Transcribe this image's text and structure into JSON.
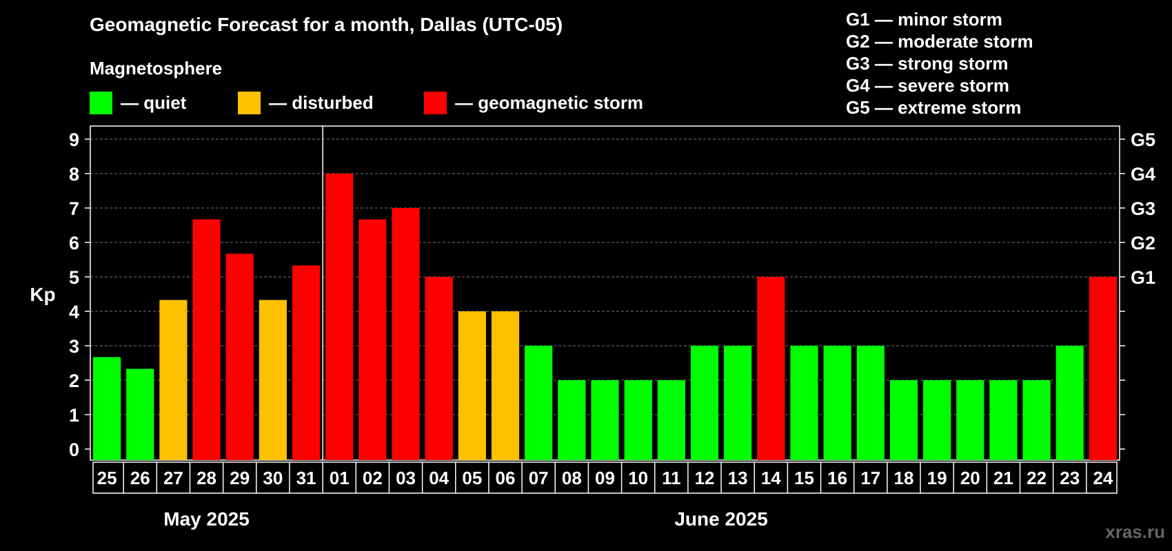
{
  "title": "Geomagnetic Forecast for a month, Dallas (UTC-05)",
  "legend": {
    "heading": "Magnetosphere",
    "items": [
      {
        "label": "— quiet",
        "color": "#00ff00"
      },
      {
        "label": "— disturbed",
        "color": "#ffc000"
      },
      {
        "label": "— geomagnetic storm",
        "color": "#ff0000"
      }
    ]
  },
  "g_scale": [
    "G1 — minor storm",
    "G2 — moderate storm",
    "G3 — strong storm",
    "G4 — severe storm",
    "G5 — extreme storm"
  ],
  "watermark": "xras.ru",
  "chart_data": {
    "type": "bar",
    "title": "Geomagnetic Forecast for a month, Dallas (UTC-05)",
    "ylabel": "Kp",
    "ylim": [
      0,
      9
    ],
    "yticks": [
      "0",
      "1",
      "2",
      "3",
      "4",
      "5",
      "6",
      "7",
      "8",
      "9"
    ],
    "right_ticks": [
      {
        "value": 5,
        "label": "G1"
      },
      {
        "value": 6,
        "label": "G2"
      },
      {
        "value": 7,
        "label": "G3"
      },
      {
        "value": 8,
        "label": "G4"
      },
      {
        "value": 9,
        "label": "G5"
      }
    ],
    "categories": [
      "25",
      "26",
      "27",
      "28",
      "29",
      "30",
      "31",
      "01",
      "02",
      "03",
      "04",
      "05",
      "06",
      "07",
      "08",
      "09",
      "10",
      "11",
      "12",
      "13",
      "14",
      "15",
      "16",
      "17",
      "18",
      "19",
      "20",
      "21",
      "22",
      "23",
      "24"
    ],
    "values": [
      2.67,
      2.33,
      4.33,
      6.67,
      5.67,
      4.33,
      5.33,
      8,
      6.67,
      7,
      5,
      4,
      4,
      3,
      2,
      2,
      2,
      2,
      3,
      3,
      5,
      3,
      3,
      3,
      2,
      2,
      2,
      2,
      2,
      3,
      5
    ],
    "levels": [
      "quiet",
      "quiet",
      "disturbed",
      "storm",
      "storm",
      "disturbed",
      "storm",
      "storm",
      "storm",
      "storm",
      "storm",
      "disturbed",
      "disturbed",
      "quiet",
      "quiet",
      "quiet",
      "quiet",
      "quiet",
      "quiet",
      "quiet",
      "storm",
      "quiet",
      "quiet",
      "quiet",
      "quiet",
      "quiet",
      "quiet",
      "quiet",
      "quiet",
      "quiet",
      "storm"
    ],
    "colors": {
      "quiet": "#00ff00",
      "disturbed": "#ffc000",
      "storm": "#ff0000"
    },
    "months": [
      {
        "label": "May 2025",
        "start_index": 0,
        "end_index": 6
      },
      {
        "label": "June 2025",
        "start_index": 7,
        "end_index": 30
      }
    ]
  }
}
